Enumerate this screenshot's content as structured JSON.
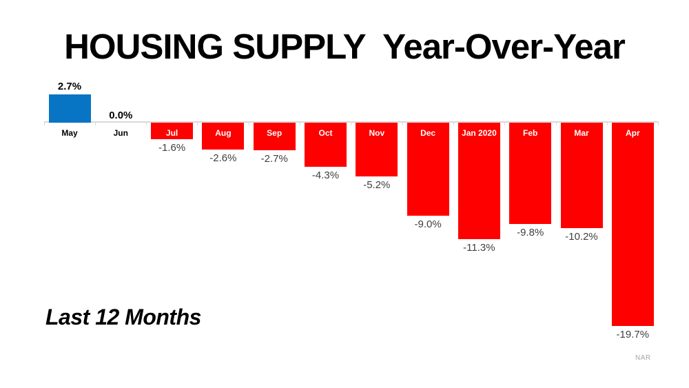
{
  "title": "HOUSING SUPPLY  Year-Over-Year",
  "subtitle": "Last 12 Months",
  "source": "NAR",
  "colors": {
    "positive_bar": "#0874c4",
    "negative_bar": "#fe0000",
    "axis": "#d9d9d9",
    "positive_value_label": "#000000",
    "negative_value_label": "#3f3f3f",
    "month_label_on_bar": "#ffffff",
    "month_label_off_bar": "#000000",
    "source_label": "#a6a6a6"
  },
  "chart_data": {
    "type": "bar",
    "title": "HOUSING SUPPLY  Year-Over-Year",
    "categories": [
      "May",
      "Jun",
      "Jul",
      "Aug",
      "Sep",
      "Oct",
      "Nov",
      "Dec",
      "Jan 2020",
      "Feb",
      "Mar",
      "Apr"
    ],
    "values": [
      2.7,
      0.0,
      -1.6,
      -2.6,
      -2.7,
      -4.3,
      -5.2,
      -9.0,
      -11.3,
      -9.8,
      -10.2,
      -19.7
    ],
    "value_labels": [
      "2.7%",
      "0.0%",
      "-1.6%",
      "-2.6%",
      "-2.7%",
      "-4.3%",
      "-5.2%",
      "-9.0%",
      "-11.3%",
      "-9.8%",
      "-10.2%",
      "-19.7%"
    ],
    "xlabel": "",
    "ylabel": "",
    "ylim": [
      -20,
      3
    ],
    "grid": false,
    "legend": null,
    "annotations": [
      "Last 12 Months",
      "NAR"
    ],
    "series_note": "single series; positive month rendered blue, negative months red, zero month has no bar; month names drawn white inside red bars, value labels outside bar ends"
  }
}
